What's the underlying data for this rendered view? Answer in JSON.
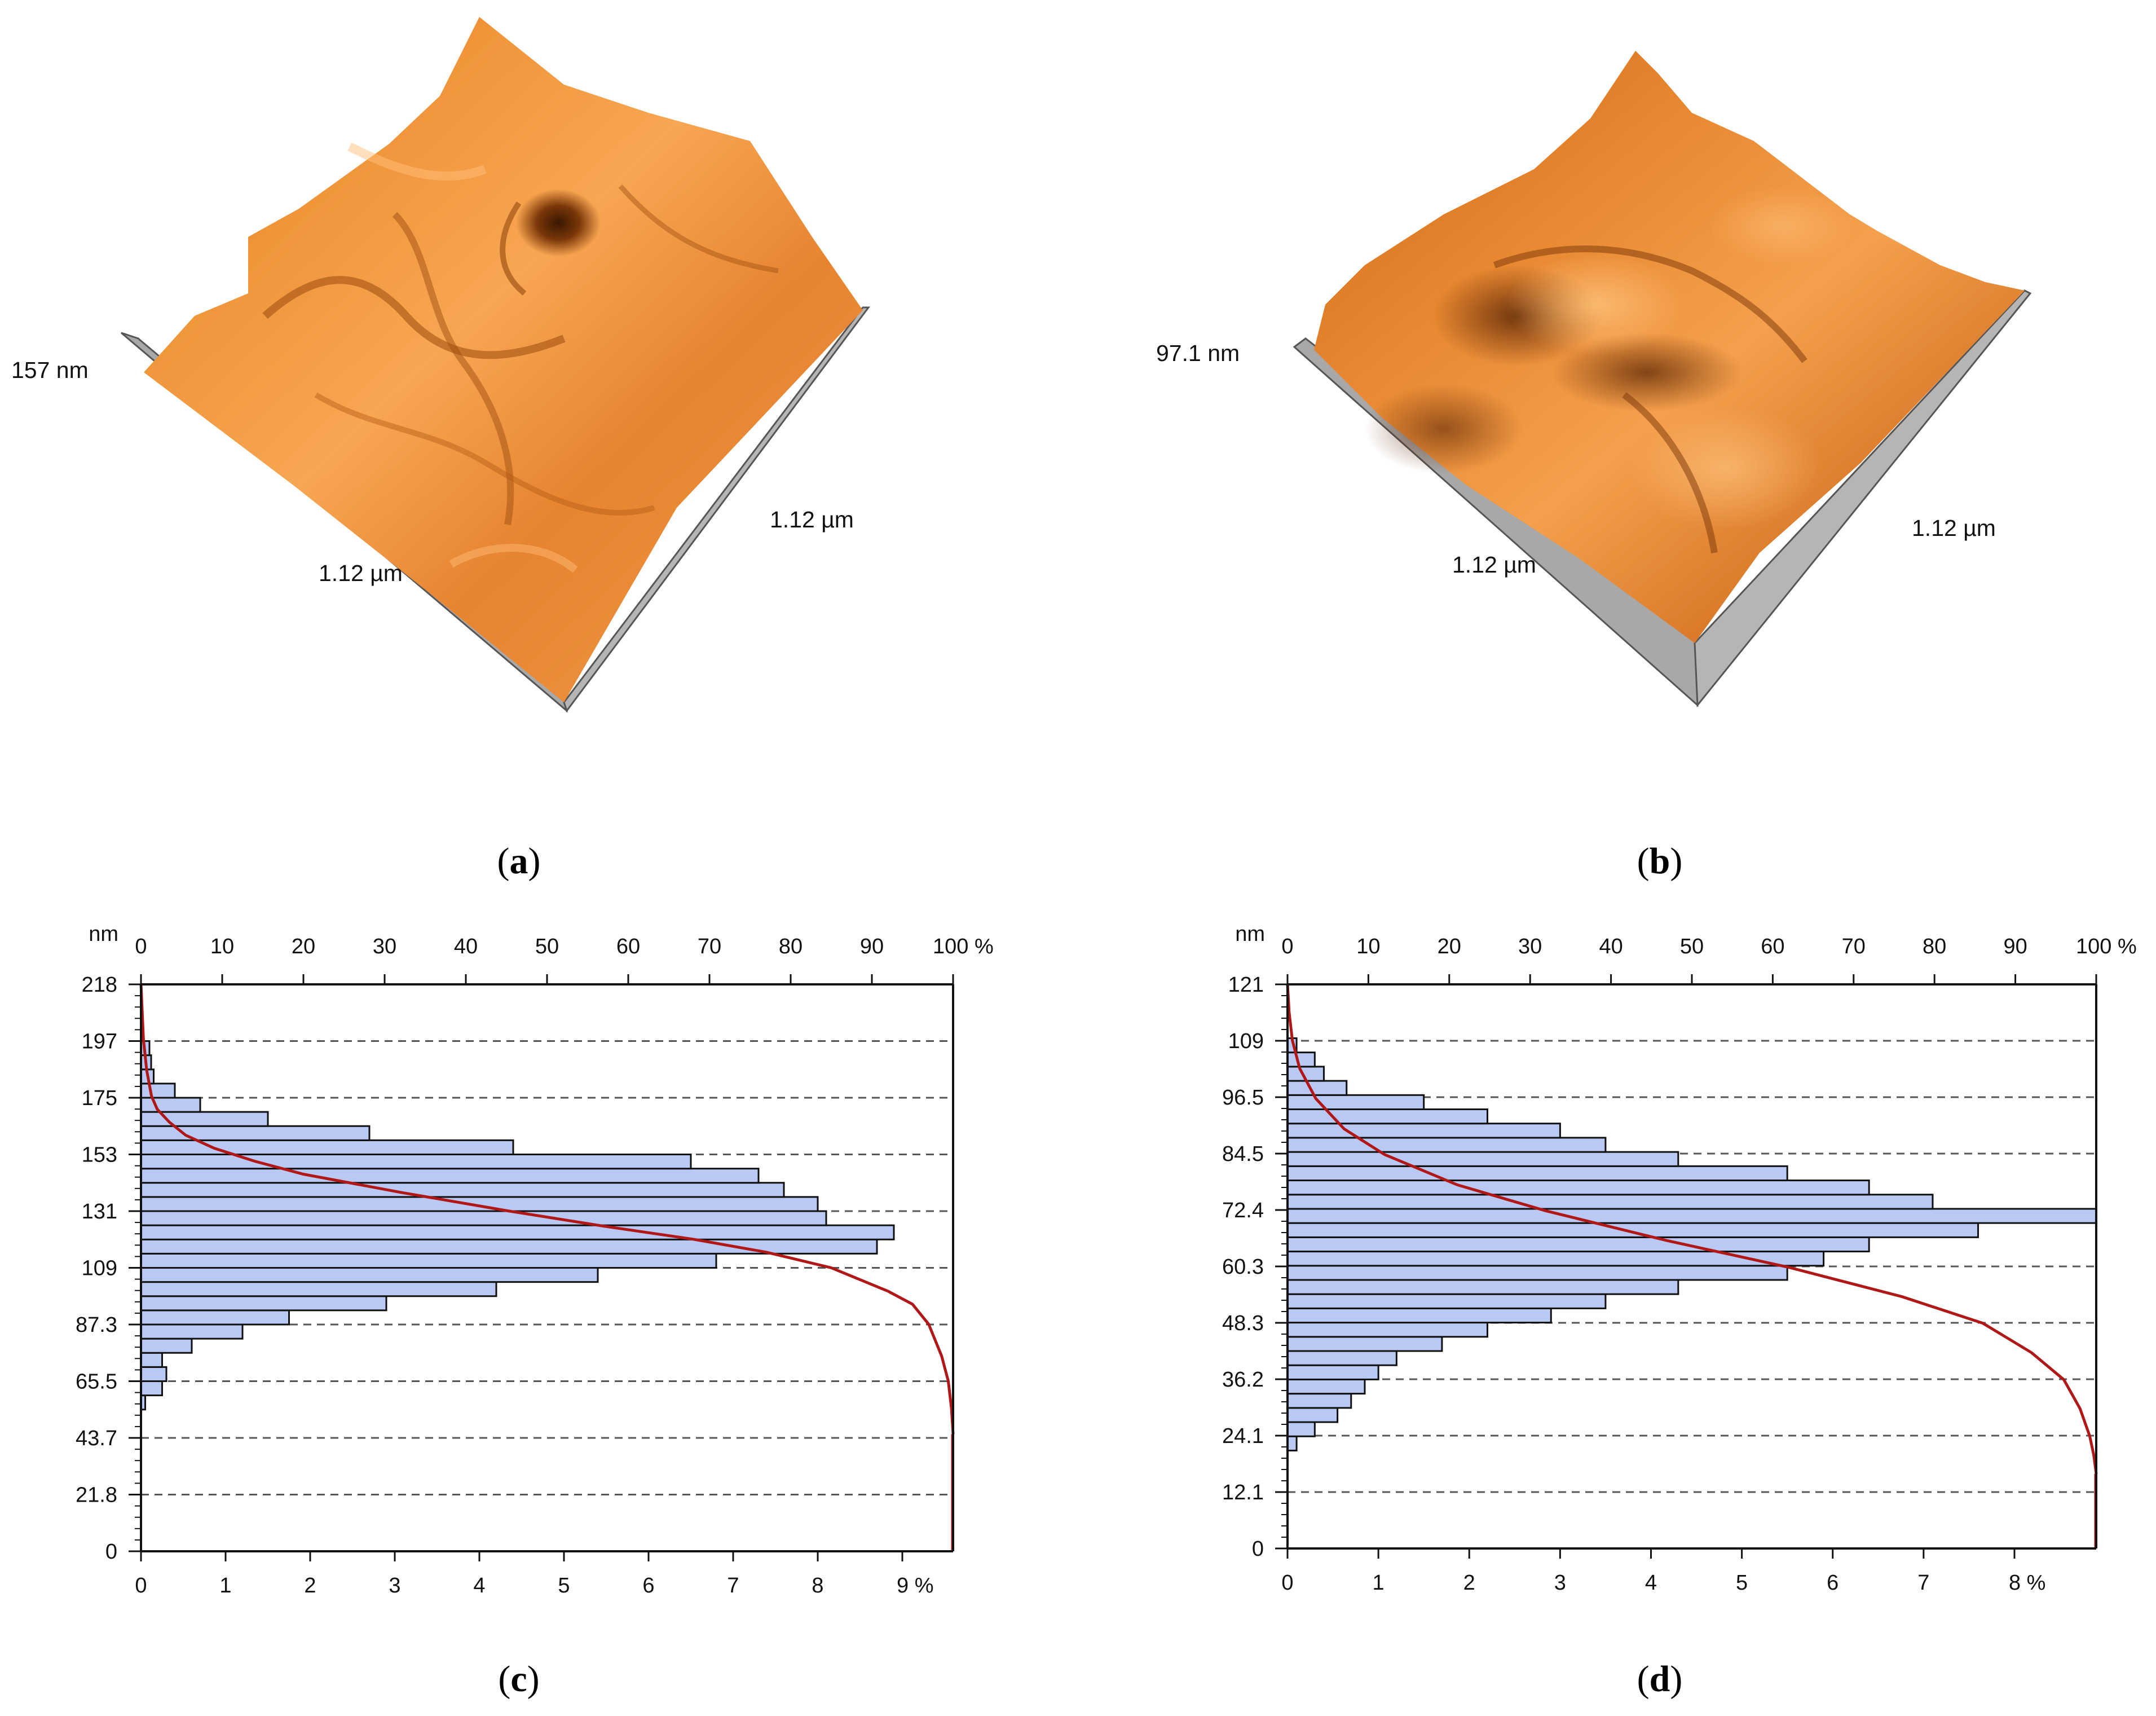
{
  "panels": {
    "a": {
      "label_open": "(",
      "label_letter": "a",
      "label_close": ")",
      "height_label": "157 nm",
      "axis_x_label": "1.12 µm",
      "axis_y_label": "1.12 µm"
    },
    "b": {
      "label_open": "(",
      "label_letter": "b",
      "label_close": ")",
      "height_label": "97.1 nm",
      "axis_x_label": "1.12 µm",
      "axis_y_label": "1.12 µm"
    },
    "c": {
      "label_open": "(",
      "label_letter": "c",
      "label_close": ")"
    },
    "d": {
      "label_open": "(",
      "label_letter": "d",
      "label_close": ")"
    }
  },
  "colors": {
    "surface_bright": "#f5a14a",
    "surface_mid": "#e07a22",
    "surface_dark": "#8a3c0a",
    "surface_side": "#a8a8a8",
    "bar_fill": "#b9c9f3",
    "bar_stroke": "#111111",
    "cumulative_line": "#b01818",
    "grid": "#555555"
  },
  "chart_data": [
    {
      "type": "bar",
      "orientation": "horizontal",
      "title": "",
      "ylabel": "nm",
      "ylim": [
        0,
        218
      ],
      "y_ticks": [
        "0",
        "21.8",
        "43.7",
        "65.5",
        "87.3",
        "109",
        "131",
        "153",
        "175",
        "197",
        "218"
      ],
      "x_bottom_ticks": [
        "0",
        "1",
        "2",
        "3",
        "4",
        "5",
        "6",
        "7",
        "8",
        "9 %"
      ],
      "x_bottom_max": 9.6,
      "x_top_ticks": [
        "0",
        "10",
        "20",
        "30",
        "40",
        "50",
        "60",
        "70",
        "80",
        "90",
        "100 %"
      ],
      "x_top_unit_label": "nm",
      "bin_height": 5.45,
      "bins_bottom_nm": [
        54.5,
        59.95,
        65.4,
        70.85,
        76.3,
        81.75,
        87.2,
        92.65,
        98.1,
        103.55,
        109.0,
        114.45,
        119.9,
        125.35,
        130.8,
        136.25,
        141.7,
        147.15,
        152.6,
        158.05,
        163.5,
        168.95,
        174.4,
        179.85,
        185.3,
        190.75
      ],
      "values_percent": [
        0.05,
        0.25,
        0.3,
        0.25,
        0.6,
        1.2,
        1.75,
        2.9,
        4.2,
        5.4,
        6.8,
        8.7,
        8.9,
        8.1,
        8.0,
        7.6,
        7.3,
        6.5,
        4.4,
        2.7,
        1.5,
        0.7,
        0.4,
        0.15,
        0.12,
        0.1
      ],
      "cumulative": {
        "name": "cumulative %",
        "y_nm": [
          45,
          55,
          65.5,
          75,
          87.3,
          95,
          100,
          109,
          115,
          120,
          125,
          131,
          138,
          145,
          150,
          155,
          160,
          165,
          170,
          175,
          185,
          197,
          218
        ],
        "percent": [
          100,
          99.8,
          99.4,
          98.6,
          97,
          95,
          92,
          85,
          77,
          68,
          57,
          45,
          32,
          20,
          14,
          9,
          5.5,
          3.5,
          2,
          1.3,
          0.7,
          0.3,
          0
        ]
      }
    },
    {
      "type": "bar",
      "orientation": "horizontal",
      "title": "",
      "ylabel": "nm",
      "ylim": [
        0,
        121
      ],
      "y_ticks": [
        "0",
        "12.1",
        "24.1",
        "36.2",
        "48.3",
        "60.3",
        "72.4",
        "84.5",
        "96.5",
        "109",
        "121"
      ],
      "x_bottom_ticks": [
        "0",
        "1",
        "2",
        "3",
        "4",
        "5",
        "6",
        "7",
        "8 %"
      ],
      "x_bottom_max": 8.9,
      "x_top_ticks": [
        "0",
        "10",
        "20",
        "30",
        "40",
        "50",
        "60",
        "70",
        "80",
        "90",
        "100 %"
      ],
      "x_top_unit_label": "nm",
      "bin_height": 3.05,
      "bins_bottom_nm": [
        21.0,
        24.05,
        27.1,
        30.15,
        33.2,
        36.25,
        39.3,
        42.35,
        45.4,
        48.45,
        51.5,
        54.55,
        57.6,
        60.65,
        63.7,
        66.75,
        69.8,
        72.85,
        75.9,
        78.95,
        82.0,
        85.05,
        88.1,
        91.15,
        94.2,
        97.25,
        100.3,
        103.35,
        106.4
      ],
      "values_percent": [
        0.1,
        0.3,
        0.55,
        0.7,
        0.85,
        1.0,
        1.2,
        1.7,
        2.2,
        2.9,
        3.5,
        4.3,
        5.5,
        5.9,
        6.4,
        7.6,
        8.9,
        7.1,
        6.4,
        5.5,
        4.3,
        3.5,
        3.0,
        2.2,
        1.5,
        0.65,
        0.4,
        0.3,
        0.1
      ],
      "cumulative": {
        "name": "cumulative %",
        "y_nm": [
          16,
          20,
          24.1,
          30,
          36.2,
          42,
          48.3,
          54,
          60.3,
          66,
          72.4,
          78,
          84.5,
          90,
          96.5,
          103,
          109,
          115,
          121
        ],
        "percent": [
          100,
          99.7,
          99.2,
          98,
          96,
          92,
          86,
          76,
          62,
          47,
          32,
          21,
          12,
          7,
          3.5,
          1.5,
          0.6,
          0.2,
          0
        ]
      }
    }
  ]
}
